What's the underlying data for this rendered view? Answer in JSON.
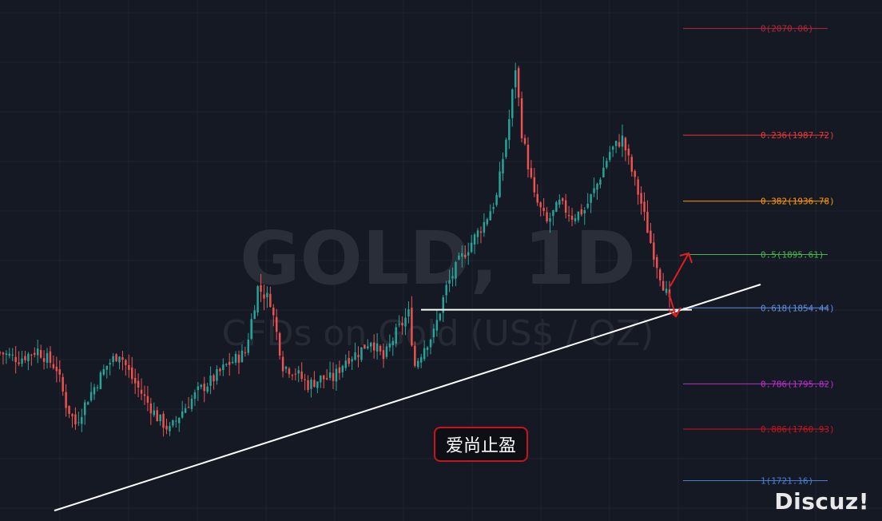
{
  "watermark": {
    "symbol": "GOLD, 1D",
    "description": "CFDs on Gold (US$ / OZ)"
  },
  "badge_text": "爱尚止盈",
  "brand_text": "Discuz!",
  "colors": {
    "background": "#151924",
    "grid": "#1f2430",
    "up": "#26a69a",
    "down": "#ef5350",
    "trendline": "#ffffff",
    "arrow": "#e01e1e"
  },
  "chart_data": {
    "type": "candlestick",
    "title": "",
    "xlabel": "",
    "ylabel": "",
    "ylim": [
      1690,
      2092
    ],
    "fib_levels": [
      {
        "ratio": "0",
        "price": 2070.06,
        "label": "0(2070.06)",
        "color": "#b22833"
      },
      {
        "ratio": "0.236",
        "price": 1987.72,
        "label": "0.236(1987.72)",
        "color": "#e53935"
      },
      {
        "ratio": "0.382",
        "price": 1936.78,
        "label": "0.382(1936.78)",
        "color": "#ff9800"
      },
      {
        "ratio": "0.5",
        "price": 1895.61,
        "label": "0.5(1895.61)",
        "color": "#4caf50"
      },
      {
        "ratio": "0.618",
        "price": 1854.44,
        "label": "0.618(1854.44)",
        "color": "#5c8fdb"
      },
      {
        "ratio": "0.786",
        "price": 1795.82,
        "label": "0.786(1795.82)",
        "color": "#ba30c8"
      },
      {
        "ratio": "0.886",
        "price": 1760.93,
        "label": "0.886(1760.93)",
        "color": "#c8141e"
      },
      {
        "ratio": "1",
        "price": 1721.16,
        "label": "1(1721.16)",
        "color": "#4a7fd0"
      }
    ],
    "support_price": 1853,
    "trend_path": [
      [
        0,
        1820
      ],
      [
        6,
        1815
      ],
      [
        12,
        1822
      ],
      [
        18,
        1808
      ],
      [
        21,
        1780
      ],
      [
        24,
        1765
      ],
      [
        28,
        1785
      ],
      [
        34,
        1810
      ],
      [
        38,
        1820
      ],
      [
        42,
        1800
      ],
      [
        46,
        1785
      ],
      [
        50,
        1770
      ],
      [
        54,
        1760
      ],
      [
        58,
        1775
      ],
      [
        63,
        1790
      ],
      [
        68,
        1800
      ],
      [
        72,
        1810
      ],
      [
        78,
        1820
      ],
      [
        82,
        1870
      ],
      [
        86,
        1860
      ],
      [
        90,
        1810
      ],
      [
        94,
        1805
      ],
      [
        98,
        1795
      ],
      [
        102,
        1800
      ],
      [
        106,
        1800
      ],
      [
        110,
        1815
      ],
      [
        114,
        1820
      ],
      [
        118,
        1830
      ],
      [
        122,
        1815
      ],
      [
        126,
        1835
      ],
      [
        130,
        1850
      ],
      [
        132,
        1810
      ],
      [
        135,
        1825
      ],
      [
        138,
        1835
      ],
      [
        142,
        1870
      ],
      [
        146,
        1890
      ],
      [
        150,
        1905
      ],
      [
        154,
        1920
      ],
      [
        158,
        1940
      ],
      [
        162,
        2000
      ],
      [
        164,
        2040
      ],
      [
        166,
        1990
      ],
      [
        170,
        1940
      ],
      [
        174,
        1920
      ],
      [
        178,
        1935
      ],
      [
        182,
        1925
      ],
      [
        186,
        1930
      ],
      [
        190,
        1950
      ],
      [
        194,
        1975
      ],
      [
        198,
        1985
      ],
      [
        201,
        1960
      ],
      [
        204,
        1935
      ],
      [
        207,
        1905
      ],
      [
        210,
        1880
      ],
      [
        213,
        1858
      ]
    ]
  }
}
